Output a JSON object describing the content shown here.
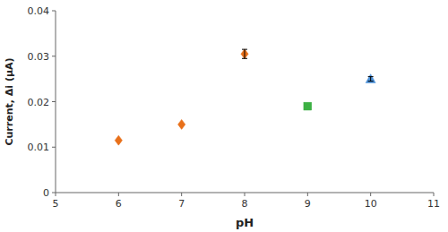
{
  "chart_data": {
    "type": "scatter",
    "xlabel": "pH",
    "ylabel": "Current, Δi (μA)",
    "xlim": [
      5,
      11
    ],
    "ylim": [
      0,
      0.04
    ],
    "xticks": [
      5,
      6,
      7,
      8,
      9,
      10,
      11
    ],
    "yticks": [
      0,
      0.01,
      0.02,
      0.03,
      0.04
    ],
    "grid": false,
    "series": [
      {
        "color": "#E8701A",
        "marker": "diamond",
        "x": [
          6,
          7,
          8
        ],
        "values": [
          0.0115,
          0.015,
          0.0305
        ],
        "yerr": [
          0,
          0,
          0.001
        ]
      },
      {
        "color": "#3CB043",
        "marker": "square",
        "x": [
          9
        ],
        "values": [
          0.019
        ]
      },
      {
        "color": "#4A90D9",
        "marker": "triangle",
        "x": [
          10
        ],
        "values": [
          0.025
        ],
        "yerr": [
          0.0005
        ]
      }
    ]
  }
}
